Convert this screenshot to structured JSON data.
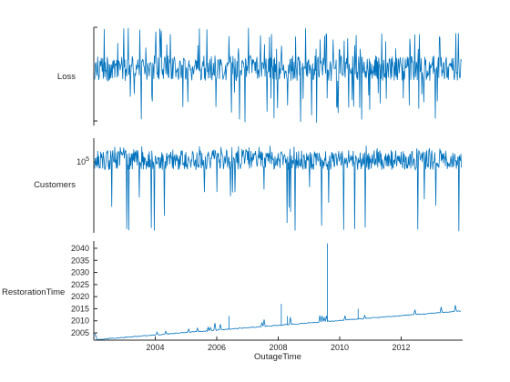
{
  "chart_data": {
    "type": "line",
    "xlabel": "OutageTime",
    "x_ticks": [
      "2004",
      "2006",
      "2008",
      "2010",
      "2012"
    ],
    "xlim": [
      2002.0,
      2014.0
    ],
    "series_color": "#0072BD",
    "panels": [
      {
        "ylabel": "Loss",
        "scale": "linear",
        "ylim": [
          0,
          1
        ],
        "yticks": [],
        "ytick_labels": [],
        "grid": false
      },
      {
        "ylabel": "Customers",
        "scale": "log",
        "ylim": [
          30000,
          200000
        ],
        "yticks": [
          100000
        ],
        "ytick_labels": [
          "10^5"
        ],
        "grid": false
      },
      {
        "ylabel": "RestorationTime",
        "scale": "linear",
        "ylim": [
          2002,
          2043
        ],
        "yticks": [
          2005,
          2010,
          2015,
          2020,
          2025,
          2030,
          2035,
          2040
        ],
        "ytick_labels": [
          "2005",
          "2010",
          "2015",
          "2020",
          "2025",
          "2030",
          "2035",
          "2040"
        ],
        "grid": false
      }
    ],
    "restoration_spikes": [
      {
        "x": 2005.7,
        "y": 2007
      },
      {
        "x": 2006.4,
        "y": 2012
      },
      {
        "x": 2008.1,
        "y": 2017
      },
      {
        "x": 2008.3,
        "y": 2012
      },
      {
        "x": 2009.6,
        "y": 2042
      },
      {
        "x": 2010.6,
        "y": 2015
      }
    ]
  }
}
